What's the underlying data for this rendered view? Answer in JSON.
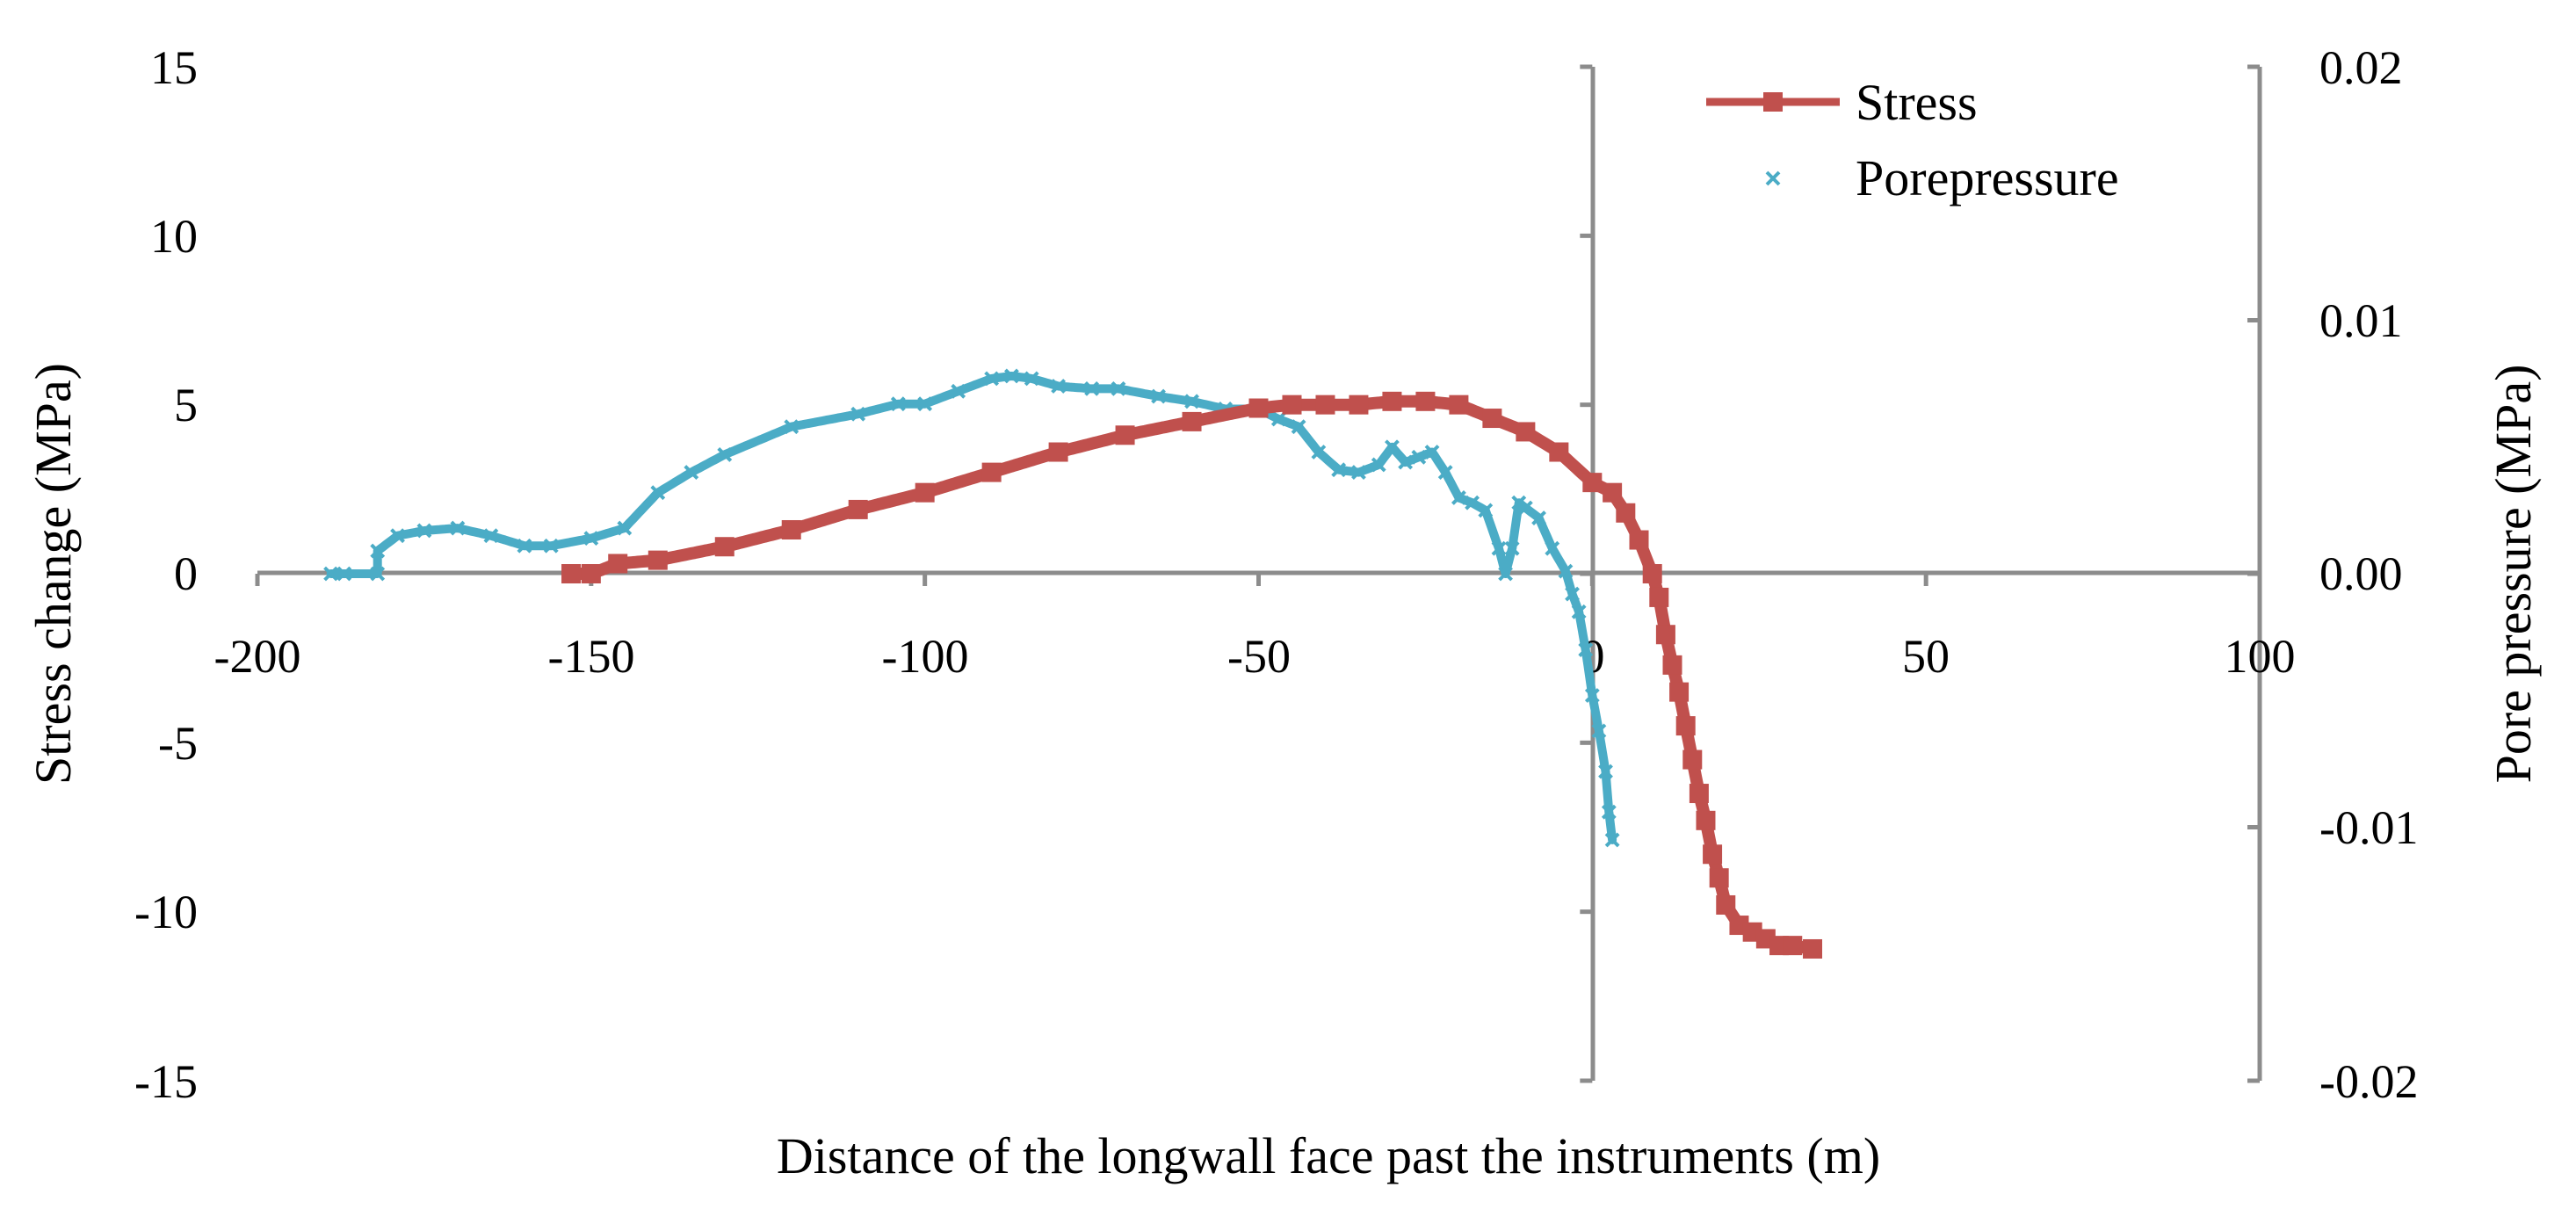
{
  "chart_data": {
    "type": "line",
    "title": "",
    "xlabel": "Distance of the longwall face past the instruments (m)",
    "ylabel": "Stress change (MPa)",
    "y2label": "Pore pressure (MPa)",
    "xlim": [
      -200,
      100
    ],
    "ylim": [
      -15,
      15
    ],
    "y2lim": [
      -0.02,
      0.02
    ],
    "x_ticks": [
      "-200",
      "-150",
      "-100",
      "-50",
      "0",
      "50",
      "100"
    ],
    "y_ticks": [
      "15",
      "10",
      "5",
      "0",
      "-5",
      "-10",
      "-15"
    ],
    "y2_ticks": [
      "0.02",
      "0.01",
      "0.00",
      "-0.01",
      "-0.02"
    ],
    "legend_position": "top-right",
    "colors": {
      "stress": "#c0504d",
      "pore": "#4bacc6",
      "axis": "#8c8c8c"
    },
    "series": [
      {
        "name": "Stress",
        "axis": "left",
        "marker": "square",
        "x": [
          -153,
          -150,
          -146,
          -140,
          -130,
          -120,
          -110,
          -100,
          -90,
          -80,
          -70,
          -60,
          -50,
          -45,
          -40,
          -35,
          -30,
          -25,
          -20,
          -15,
          -10,
          -5,
          0,
          3,
          5,
          7,
          9,
          10,
          11,
          12,
          13,
          14,
          15,
          16,
          17,
          18,
          19,
          20,
          22,
          24,
          26,
          28,
          30,
          33
        ],
        "values": [
          0,
          0,
          0.3,
          0.4,
          0.8,
          1.3,
          1.9,
          2.4,
          3.0,
          3.6,
          4.1,
          4.5,
          4.9,
          5.0,
          5.0,
          5.0,
          5.1,
          5.1,
          5.0,
          4.6,
          4.2,
          3.6,
          2.7,
          2.4,
          1.8,
          1.0,
          0.0,
          -0.7,
          -1.8,
          -2.7,
          -3.5,
          -4.5,
          -5.5,
          -6.5,
          -7.3,
          -8.3,
          -9.0,
          -9.8,
          -10.4,
          -10.6,
          -10.8,
          -11.0,
          -11.0,
          -11.1
        ]
      },
      {
        "name": "Porepressure",
        "axis": "right",
        "marker": "x",
        "x": [
          -189,
          -187,
          -182,
          -182,
          -179,
          -175,
          -170,
          -165,
          -160,
          -156,
          -150,
          -145,
          -140,
          -135,
          -130,
          -120,
          -110,
          -104,
          -100,
          -95,
          -90,
          -87,
          -84,
          -80,
          -75,
          -71,
          -65,
          -60,
          -55,
          -50,
          -47,
          -44,
          -41,
          -38,
          -35,
          -32,
          -30,
          -28,
          -26,
          -24,
          -22,
          -20,
          -18,
          -16,
          -14,
          -13,
          -12,
          -11,
          -10,
          -8,
          -6,
          -4,
          -3,
          -2,
          -1,
          0,
          1,
          2,
          2.5,
          3
        ],
        "values": [
          0.0,
          0.0,
          0.0,
          0.0009,
          0.0015,
          0.0017,
          0.0018,
          0.0015,
          0.0011,
          0.0011,
          0.0014,
          0.0018,
          0.0032,
          0.004,
          0.0047,
          0.0058,
          0.0063,
          0.0067,
          0.0067,
          0.0072,
          0.0077,
          0.0078,
          0.0077,
          0.0074,
          0.0073,
          0.0073,
          0.007,
          0.0068,
          0.0065,
          0.0065,
          0.0061,
          0.0058,
          0.0048,
          0.0041,
          0.004,
          0.0043,
          0.005,
          0.0044,
          0.0046,
          0.0048,
          0.004,
          0.003,
          0.0028,
          0.0025,
          0.001,
          0.0,
          0.001,
          0.0028,
          0.0026,
          0.0022,
          0.001,
          0.0001,
          -0.0008,
          -0.0015,
          -0.003,
          -0.0048,
          -0.0062,
          -0.0078,
          -0.0094,
          -0.0105
        ]
      }
    ]
  }
}
